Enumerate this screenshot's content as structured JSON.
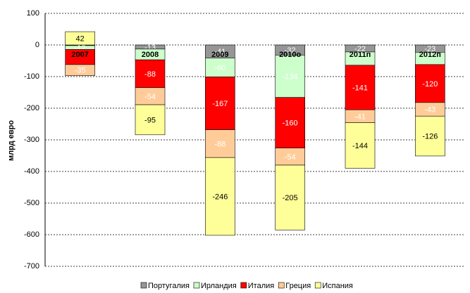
{
  "chart_data": {
    "type": "stacked_bar",
    "y_label": "млрд евро",
    "categories": [
      "2007",
      "2008",
      "2009",
      "2010о",
      "2011п",
      "2012п"
    ],
    "series": [
      {
        "name": "Португалия",
        "color": "#969696",
        "values": [
          -2,
          -13,
          -41,
          -32,
          -22,
          -23
        ],
        "value_labels": [
          null,
          "-13",
          "-41",
          "-32",
          "-22",
          "-23"
        ]
      },
      {
        "name": "Ирландия",
        "color": "#ccffcc",
        "values": [
          -12,
          -34,
          -60,
          -134,
          -42,
          -39
        ],
        "value_labels": [
          "-12",
          null,
          "-60",
          "-134",
          null,
          null
        ]
      },
      {
        "name": "Италия",
        "color": "#ff0000",
        "values": [
          -48,
          -88,
          -167,
          -160,
          -141,
          -120
        ],
        "value_labels": [
          null,
          "-88",
          "-167",
          "-160",
          "-141",
          "-120"
        ]
      },
      {
        "name": "Греция",
        "color": "#ffcc99",
        "values": [
          -35,
          -54,
          -88,
          -54,
          -41,
          -43
        ],
        "value_labels": [
          "-35",
          "-54",
          "-88",
          "-54",
          "-41",
          "-43"
        ]
      },
      {
        "name": "Испания",
        "color": "#ffff99",
        "values": [
          42,
          -95,
          -246,
          -205,
          -144,
          -126
        ],
        "value_labels": [
          "42",
          "-95",
          "-246",
          "-205",
          "-144",
          "-126"
        ]
      }
    ],
    "ylim": [
      -700,
      100
    ],
    "yticks": [
      -700,
      -600,
      -500,
      -400,
      -300,
      -200,
      -100,
      0,
      100
    ],
    "grid": true
  }
}
